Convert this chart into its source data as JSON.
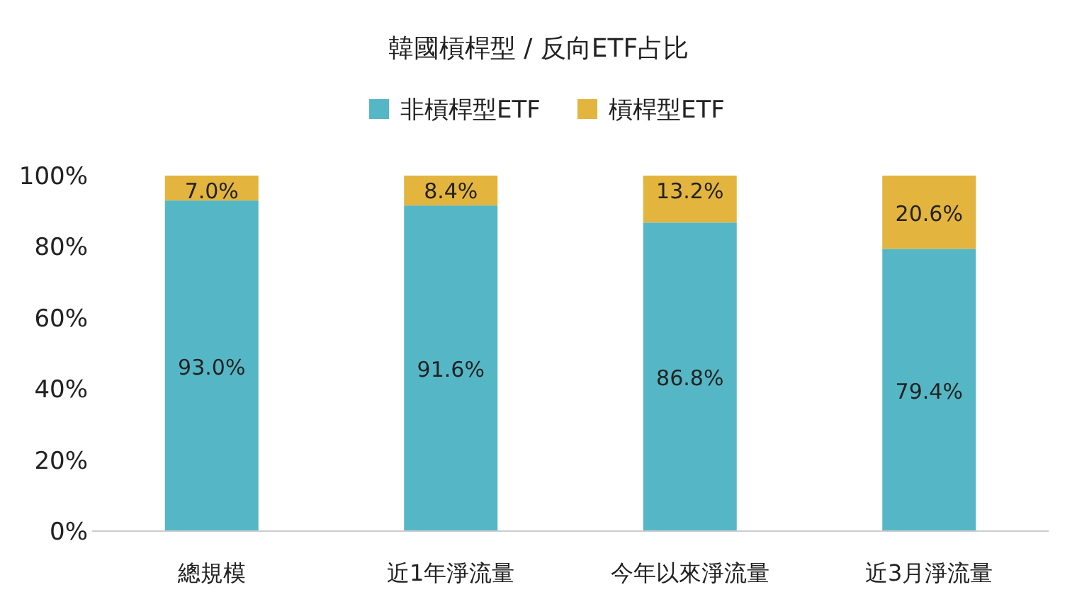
{
  "chart_data": {
    "type": "bar",
    "stacked": true,
    "title": "韓國槓桿型 / 反向ETF占比",
    "legend": "top",
    "categories": [
      "總規模",
      "近1年淨流量",
      "今年以來淨流量",
      "近3月淨流量"
    ],
    "ylim": [
      0,
      100
    ],
    "yticks": [
      {
        "value": 0,
        "label": "0%"
      },
      {
        "value": 20,
        "label": "20%"
      },
      {
        "value": 40,
        "label": "40%"
      },
      {
        "value": 60,
        "label": "60%"
      },
      {
        "value": 80,
        "label": "80%"
      },
      {
        "value": 100,
        "label": "100%"
      }
    ],
    "series": [
      {
        "name": "非槓桿型ETF",
        "color": "#55b7c6",
        "values": [
          93.0,
          91.6,
          86.8,
          79.4
        ],
        "value_labels": [
          "93.0%",
          "91.6%",
          "86.8%",
          "79.4%"
        ]
      },
      {
        "name": "槓桿型ETF",
        "color": "#e3b43e",
        "values": [
          7.0,
          8.4,
          13.2,
          20.6
        ],
        "value_labels": [
          "7.0%",
          "8.4%",
          "13.2%",
          "20.6%"
        ]
      }
    ]
  }
}
